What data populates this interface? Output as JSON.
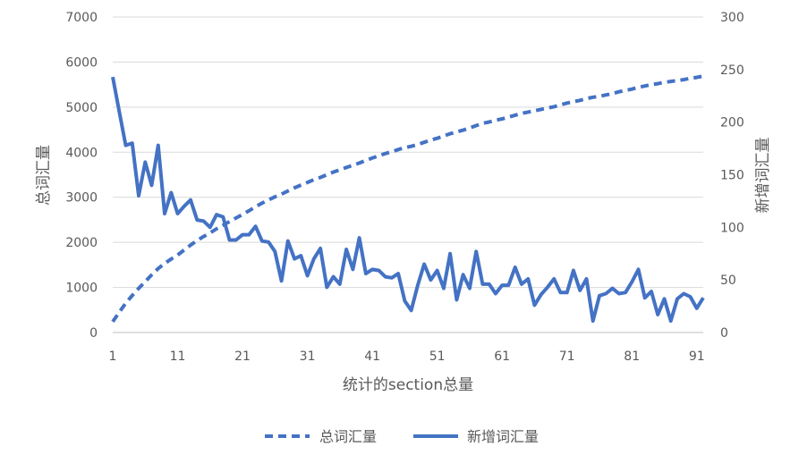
{
  "chart_data": {
    "type": "line",
    "xlabel": "统计的section总量",
    "ylabel_left": "总词汇量",
    "ylabel_right": "新增词汇量",
    "ylim_left": [
      0,
      7000
    ],
    "ylim_right": [
      0,
      300
    ],
    "y_ticks_left": [
      0,
      1000,
      2000,
      3000,
      4000,
      5000,
      6000,
      7000
    ],
    "y_ticks_right": [
      0,
      50,
      100,
      150,
      200,
      250,
      300
    ],
    "xlim": [
      1,
      92
    ],
    "x_ticks": [
      1,
      11,
      21,
      31,
      41,
      51,
      61,
      71,
      81,
      91
    ],
    "grid": true,
    "legend_position": "bottom",
    "x": [
      1,
      2,
      3,
      4,
      5,
      6,
      7,
      8,
      9,
      10,
      11,
      12,
      13,
      14,
      15,
      16,
      17,
      18,
      19,
      20,
      21,
      22,
      23,
      24,
      25,
      26,
      27,
      28,
      29,
      30,
      31,
      32,
      33,
      34,
      35,
      36,
      37,
      38,
      39,
      40,
      41,
      42,
      43,
      44,
      45,
      46,
      47,
      48,
      49,
      50,
      51,
      52,
      53,
      54,
      55,
      56,
      57,
      58,
      59,
      60,
      61,
      62,
      63,
      64,
      65,
      66,
      67,
      68,
      69,
      70,
      71,
      72,
      73,
      74,
      75,
      76,
      77,
      78,
      79,
      80,
      81,
      82,
      83,
      84,
      85,
      86,
      87,
      88,
      89,
      90,
      91,
      92
    ],
    "series": [
      {
        "name": "总词汇量",
        "axis": "left",
        "style": "dashed",
        "color": "#4472C4",
        "values": [
          240,
          450,
          650,
          820,
          980,
          1130,
          1280,
          1420,
          1530,
          1630,
          1720,
          1830,
          1940,
          2040,
          2130,
          2210,
          2300,
          2380,
          2460,
          2540,
          2620,
          2700,
          2790,
          2870,
          2940,
          3010,
          3070,
          3140,
          3210,
          3270,
          3330,
          3390,
          3440,
          3500,
          3560,
          3610,
          3660,
          3710,
          3760,
          3820,
          3870,
          3920,
          3970,
          4010,
          4060,
          4100,
          4130,
          4170,
          4220,
          4270,
          4310,
          4360,
          4410,
          4450,
          4490,
          4540,
          4590,
          4640,
          4670,
          4710,
          4740,
          4780,
          4820,
          4860,
          4890,
          4920,
          4950,
          4980,
          5010,
          5050,
          5090,
          5120,
          5150,
          5190,
          5220,
          5240,
          5270,
          5300,
          5340,
          5370,
          5400,
          5440,
          5470,
          5500,
          5520,
          5550,
          5570,
          5590,
          5610,
          5640,
          5660,
          5690
        ]
      },
      {
        "name": "新增词汇量",
        "axis": "right",
        "style": "solid",
        "color": "#4472C4",
        "values": [
          243,
          210,
          178,
          180,
          130,
          162,
          140,
          178,
          113,
          133,
          113,
          120,
          126,
          107,
          106,
          100,
          112,
          110,
          88,
          88,
          93,
          93,
          101,
          87,
          86,
          77,
          49,
          87,
          70,
          73,
          54,
          70,
          80,
          43,
          53,
          46,
          79,
          60,
          90,
          56,
          60,
          59,
          53,
          52,
          56,
          30,
          21,
          45,
          65,
          50,
          59,
          42,
          75,
          31,
          55,
          42,
          77,
          46,
          46,
          37,
          45,
          45,
          62,
          46,
          51,
          26,
          36,
          43,
          51,
          38,
          38,
          59,
          40,
          51,
          11,
          35,
          37,
          42,
          37,
          38,
          48,
          60,
          33,
          39,
          17,
          32,
          11,
          32,
          37,
          34,
          23,
          33
        ]
      }
    ]
  }
}
